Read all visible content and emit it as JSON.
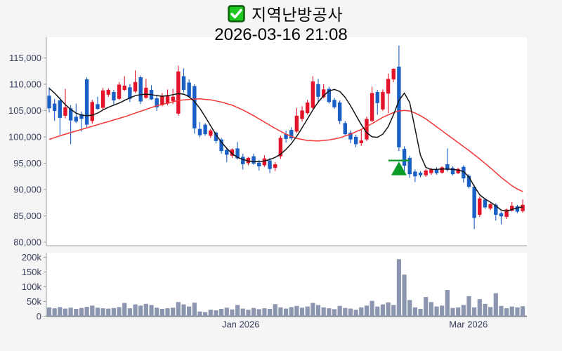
{
  "title": {
    "symbol_name": "지역난방공사",
    "timestamp": "2026-03-16 21:08",
    "checkbox_icon": "green-checked-checkbox"
  },
  "colors": {
    "up_candle": "#e3142a",
    "down_candle": "#1a5fc4",
    "volume_bar": "#8d96b0",
    "ma_short_line": "#131313",
    "ma_long_line": "#f43636",
    "marker_green": "#0a9b28",
    "axis_text": "#39415c",
    "axis_line": "#999da3",
    "background": "#f5f5f6",
    "plot_background": "#ffffff",
    "checkbox_fill": "#1fc81f",
    "checkbox_border": "#0a5a0a"
  },
  "price_axis": {
    "labels": [
      "115,000",
      "110,000",
      "105,000",
      "100,000",
      "95,000",
      "90,000",
      "85,000",
      "80,000"
    ],
    "values": [
      115000,
      110000,
      105000,
      100000,
      95000,
      90000,
      85000,
      80000
    ]
  },
  "volume_axis": {
    "labels": [
      "200k",
      "150k",
      "100k",
      "50k",
      "0"
    ],
    "values": [
      200000,
      150000,
      100000,
      50000,
      0
    ]
  },
  "x_axis": {
    "ticks": [
      {
        "label": "Jan 2026",
        "index": 35.6
      },
      {
        "label": "Mar 2026",
        "index": 77.9
      }
    ]
  },
  "chart_data": {
    "type": "candlestick+volume",
    "unit": "KRW",
    "price_ylim": [
      79335,
      118900
    ],
    "volume_ylim": [
      0,
      215000
    ],
    "grid": false,
    "candles_ohlc": [
      [
        107800,
        109400,
        104600,
        105400
      ],
      [
        106300,
        107200,
        103000,
        104900
      ],
      [
        106900,
        107500,
        100400,
        103600
      ],
      [
        104000,
        109100,
        103500,
        105600
      ],
      [
        105400,
        106000,
        98600,
        103100
      ],
      [
        103800,
        106300,
        102600,
        102900
      ],
      [
        104300,
        104800,
        101000,
        103400
      ],
      [
        110900,
        111300,
        101800,
        102300
      ],
      [
        103000,
        107000,
        102500,
        106600
      ],
      [
        106200,
        107600,
        105100,
        105300
      ],
      [
        105500,
        109300,
        105200,
        108800
      ],
      [
        108000,
        109200,
        107600,
        108900
      ],
      [
        108500,
        108900,
        105900,
        106900
      ],
      [
        107200,
        110400,
        107000,
        109900
      ],
      [
        108900,
        111500,
        108700,
        109700
      ],
      [
        109400,
        110000,
        106600,
        107200
      ],
      [
        108600,
        112600,
        108300,
        110400
      ],
      [
        111300,
        111600,
        106200,
        106700
      ],
      [
        107400,
        111000,
        107200,
        109300
      ],
      [
        108900,
        109800,
        107000,
        107100
      ],
      [
        107300,
        108000,
        104900,
        105600
      ],
      [
        106000,
        108300,
        105800,
        107800
      ],
      [
        106300,
        109000,
        106000,
        107900
      ],
      [
        106800,
        109100,
        106200,
        107600
      ],
      [
        104400,
        113500,
        104000,
        112400
      ],
      [
        111500,
        113000,
        108400,
        108900
      ],
      [
        110300,
        110900,
        107400,
        107600
      ],
      [
        109600,
        110000,
        100600,
        101600
      ],
      [
        101500,
        102800,
        99900,
        100300
      ],
      [
        102300,
        102600,
        100200,
        100500
      ],
      [
        100200,
        101500,
        99800,
        101200
      ],
      [
        100800,
        101000,
        98700,
        99200
      ],
      [
        99500,
        99800,
        96800,
        97300
      ],
      [
        97500,
        98000,
        95200,
        96600
      ],
      [
        96400,
        97800,
        96000,
        97600
      ],
      [
        97800,
        99000,
        95700,
        95900
      ],
      [
        96200,
        96800,
        93800,
        94800
      ],
      [
        95000,
        96200,
        94600,
        96000
      ],
      [
        96300,
        96800,
        94700,
        94900
      ],
      [
        95100,
        95600,
        93600,
        94400
      ],
      [
        94600,
        96500,
        94300,
        95900
      ],
      [
        95500,
        96000,
        93100,
        93900
      ],
      [
        94100,
        95200,
        93500,
        94800
      ],
      [
        96300,
        100200,
        95800,
        99800
      ],
      [
        100500,
        101200,
        98900,
        99600
      ],
      [
        101300,
        101800,
        99300,
        99700
      ],
      [
        101000,
        105500,
        100700,
        104000
      ],
      [
        103400,
        105800,
        102900,
        105000
      ],
      [
        104500,
        107000,
        104200,
        106500
      ],
      [
        105500,
        111500,
        105300,
        110500
      ],
      [
        110000,
        111000,
        106400,
        107600
      ],
      [
        107500,
        110000,
        107300,
        109000
      ],
      [
        109100,
        109500,
        106300,
        106600
      ],
      [
        107000,
        107400,
        105300,
        105600
      ],
      [
        106500,
        106900,
        102400,
        103000
      ],
      [
        102600,
        103000,
        100300,
        100500
      ],
      [
        100800,
        101200,
        98800,
        99500
      ],
      [
        100000,
        100400,
        98000,
        98600
      ],
      [
        98800,
        101500,
        98300,
        99300
      ],
      [
        99500,
        103800,
        99200,
        103400
      ],
      [
        103000,
        109500,
        102800,
        108300
      ],
      [
        108500,
        108900,
        104200,
        106400
      ],
      [
        105200,
        109000,
        104900,
        108500
      ],
      [
        108200,
        112000,
        104500,
        111000
      ],
      [
        110900,
        113000,
        110400,
        112900
      ],
      [
        113300,
        117300,
        97300,
        98000
      ],
      [
        97700,
        98200,
        93000,
        94500
      ],
      [
        96000,
        96400,
        92200,
        92900
      ],
      [
        93400,
        93800,
        91400,
        92500
      ],
      [
        93200,
        93500,
        92300,
        92700
      ],
      [
        92700,
        93900,
        92400,
        93600
      ],
      [
        93100,
        94100,
        92800,
        93800
      ],
      [
        93900,
        94200,
        92800,
        93100
      ],
      [
        93200,
        94400,
        93000,
        94200
      ],
      [
        94800,
        97800,
        93400,
        93700
      ],
      [
        94100,
        94400,
        92700,
        92900
      ],
      [
        93100,
        94100,
        92900,
        93900
      ],
      [
        94300,
        94600,
        91300,
        92100
      ],
      [
        92600,
        92900,
        90200,
        90500
      ],
      [
        90500,
        90900,
        82500,
        84600
      ],
      [
        85200,
        88700,
        84800,
        88300
      ],
      [
        88100,
        88400,
        86300,
        86600
      ],
      [
        86400,
        87400,
        86100,
        87200
      ],
      [
        87100,
        87400,
        84100,
        85200
      ],
      [
        85500,
        85800,
        83400,
        84900
      ],
      [
        84800,
        86400,
        84400,
        86200
      ],
      [
        86000,
        87600,
        85800,
        86900
      ],
      [
        86800,
        87100,
        85500,
        85800
      ],
      [
        85900,
        88100,
        85600,
        87100
      ]
    ],
    "volumes": [
      30000,
      27000,
      31000,
      26000,
      29000,
      25000,
      28000,
      32000,
      36000,
      29000,
      27000,
      26000,
      28000,
      31000,
      45000,
      27000,
      40000,
      36000,
      42000,
      38000,
      29000,
      25000,
      27000,
      29000,
      48000,
      40000,
      33000,
      46000,
      16000,
      14000,
      22000,
      20000,
      25000,
      29000,
      23000,
      38000,
      26000,
      22000,
      28000,
      24000,
      27000,
      25000,
      41000,
      30000,
      26000,
      31000,
      35000,
      29000,
      33000,
      45000,
      38000,
      30000,
      27000,
      24000,
      35000,
      28000,
      26000,
      22000,
      30000,
      36000,
      52000,
      33000,
      40000,
      47000,
      38000,
      193000,
      141000,
      55000,
      30000,
      25000,
      65000,
      48000,
      33000,
      36000,
      89000,
      28000,
      30000,
      38000,
      68000,
      30000,
      58000,
      42000,
      31000,
      78000,
      35000,
      27000,
      33000,
      30000,
      34000
    ],
    "ma_short": [
      109200,
      108300,
      107200,
      106100,
      105200,
      104500,
      104100,
      104000,
      104100,
      104500,
      105100,
      105600,
      106000,
      106400,
      106900,
      107400,
      107800,
      108000,
      108100,
      108000,
      107800,
      107700,
      107800,
      108000,
      108200,
      108100,
      107600,
      106700,
      105400,
      103800,
      102100,
      100400,
      99000,
      97800,
      96800,
      96100,
      95700,
      95400,
      95300,
      95300,
      95400,
      95700,
      96100,
      96700,
      97600,
      98700,
      100100,
      101700,
      103400,
      105100,
      106600,
      107800,
      108700,
      109000,
      108600,
      107500,
      105900,
      104100,
      102300,
      100800,
      100000,
      99900,
      100500,
      101900,
      104200,
      106900,
      108300,
      106500,
      101500,
      96500,
      94200,
      93800,
      93800,
      93900,
      93900,
      93800,
      93700,
      93400,
      92400,
      90600,
      89000,
      88200,
      87600,
      86900,
      86100,
      85900,
      86200,
      86500,
      86700
    ],
    "ma_long": [
      99500,
      99850,
      100200,
      100500,
      100800,
      101100,
      101400,
      101700,
      102000,
      102300,
      102600,
      102900,
      103200,
      103500,
      103800,
      104150,
      104500,
      104850,
      105200,
      105550,
      105900,
      106150,
      106400,
      106650,
      106900,
      107000,
      107100,
      107150,
      107200,
      107100,
      107000,
      106800,
      106600,
      106300,
      106000,
      105550,
      105100,
      104550,
      104000,
      103400,
      102800,
      102200,
      101600,
      101050,
      100500,
      100100,
      99700,
      99500,
      99300,
      99250,
      99200,
      99300,
      99400,
      99600,
      99800,
      100150,
      100500,
      100950,
      101400,
      101950,
      102500,
      103100,
      103700,
      104150,
      104600,
      104900,
      105000,
      104900,
      104500,
      104000,
      103400,
      102650,
      101900,
      101150,
      100400,
      99650,
      98900,
      98150,
      97400,
      96600,
      95800,
      94950,
      94100,
      93200,
      92300,
      91500,
      90700,
      90100,
      89600
    ],
    "marker": {
      "shape": "up-triangle-with-line",
      "candle_index": 65,
      "line_price": 95500,
      "apex_price": 95300,
      "base_price": 92700
    }
  }
}
